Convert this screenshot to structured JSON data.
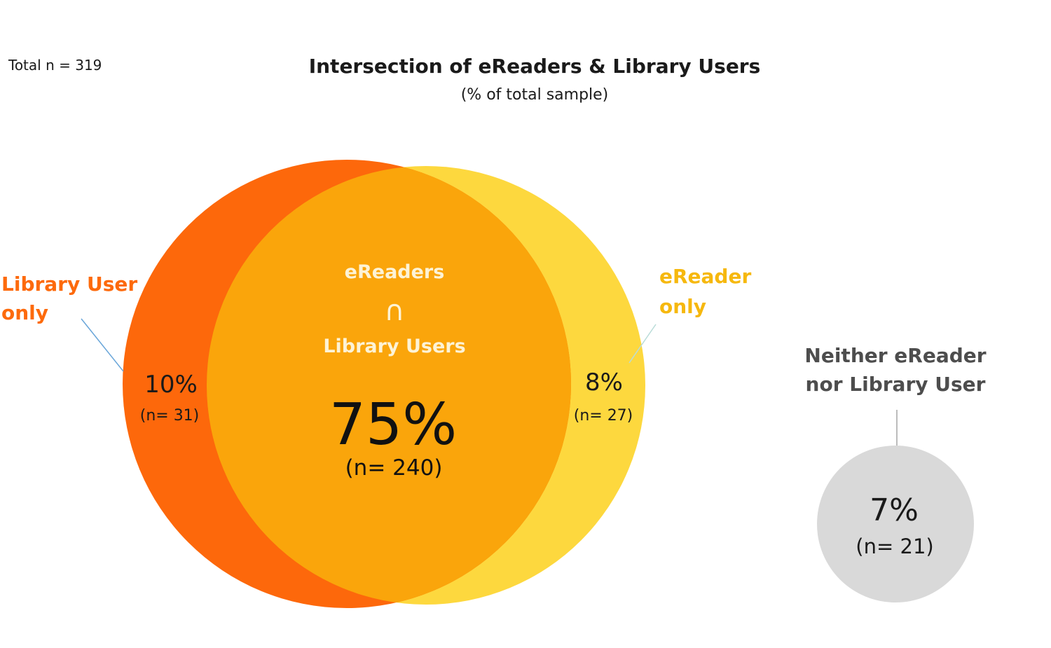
{
  "total_label": "Total n = 319",
  "title": "Intersection of eReaders & Library Users",
  "subtitle": "(% of total sample)",
  "colors": {
    "library": "#fd680b",
    "ereader": "#fdd83e",
    "intersection": "#faa50b",
    "neither": "#d9d9d9",
    "leader_blue": "#6aa6d9",
    "leader_grey": "#a6a6a6",
    "library_text": "#fd6a0c",
    "ereader_text": "#f6b80e"
  },
  "library_only": {
    "label_line1": "Library User",
    "label_line2": "only",
    "pct": "10%",
    "n": "(n= 31)"
  },
  "ereader_only": {
    "label_line1": "eReader",
    "label_line2": "only",
    "pct": "8%",
    "n": "(n= 27)"
  },
  "intersection": {
    "label_line1": "eReaders",
    "symbol": "∩",
    "label_line2": "Library Users",
    "pct": "75%",
    "n": "(n= 240)"
  },
  "neither": {
    "label_line1": "Neither eReader",
    "label_line2": "nor Library User",
    "pct": "7%",
    "n": "(n= 21)"
  }
}
